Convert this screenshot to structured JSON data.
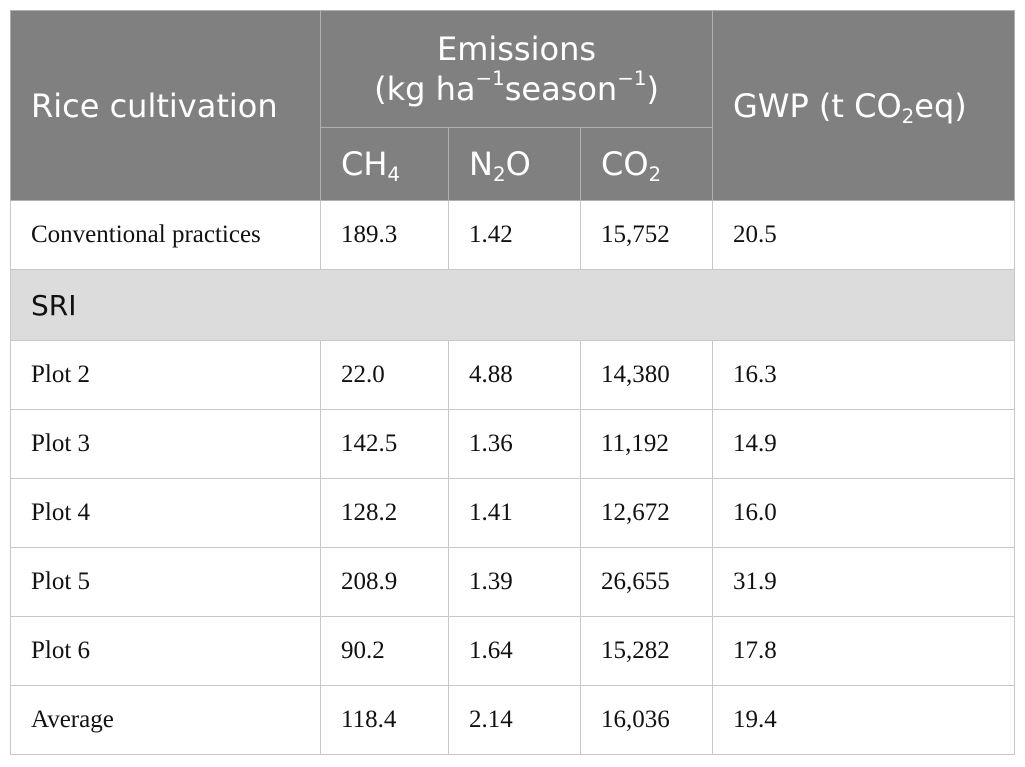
{
  "table": {
    "header": {
      "rice_cultivation": "Rice cultivation",
      "emissions": [
        "Emissions",
        "(kg ha",
        "−1",
        "season",
        "−1",
        ")"
      ],
      "gwp": [
        "GWP (t CO",
        "2",
        "eq)"
      ],
      "gases": [
        [
          "CH",
          "4"
        ],
        [
          "N",
          "2",
          "O"
        ],
        [
          "CO",
          "2"
        ]
      ]
    },
    "rows": [
      [
        "Conventional practices",
        "189.3",
        "1.42",
        "15,752",
        "20.5"
      ],
      [
        "SRI"
      ],
      [
        "Plot 2",
        "22.0",
        "4.88",
        "14,380",
        "16.3"
      ],
      [
        "Plot 3",
        "142.5",
        "1.36",
        "11,192",
        "14.9"
      ],
      [
        "Plot 4",
        "128.2",
        "1.41",
        "12,672",
        "16.0"
      ],
      [
        "Plot 5",
        "208.9",
        "1.39",
        "26,655",
        "31.9"
      ],
      [
        "Plot 6",
        "90.2",
        "1.64",
        "15,282",
        "17.8"
      ],
      [
        "Average",
        "118.4",
        "2.14",
        "16,036",
        "19.4"
      ]
    ]
  }
}
